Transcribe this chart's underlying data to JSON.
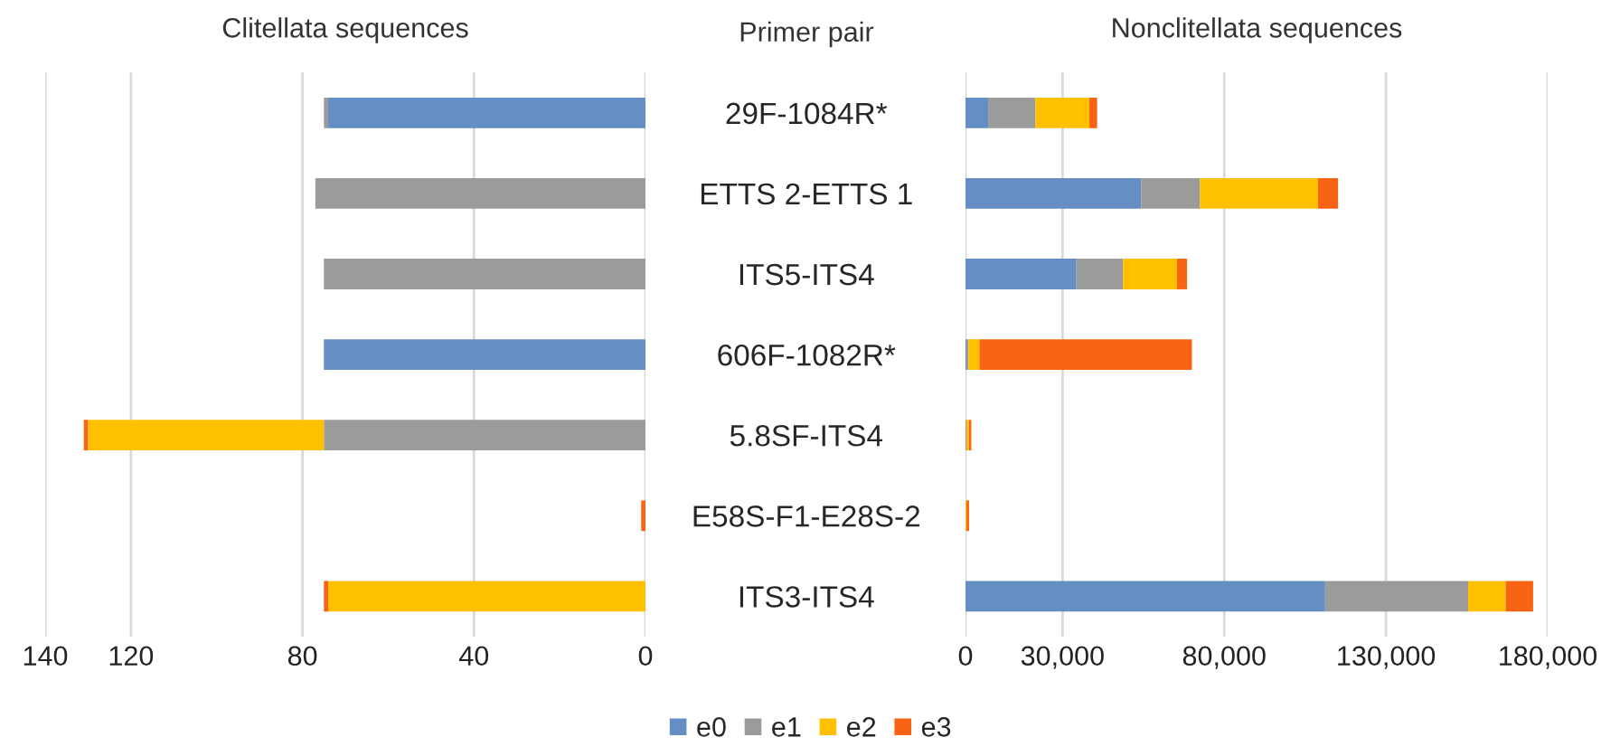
{
  "chart_data": [
    {
      "type": "bar",
      "orientation": "horizontal",
      "stacked": true,
      "title": "Clitellata sequences",
      "ylabel": "Primer pair",
      "categories": [
        "29F-1084R*",
        "ETTS 2-ETTS 1",
        "ITS5-ITS4",
        "606F-1082R*",
        "5.8SF-ITS4",
        "E58S-F1-E28S-2",
        "ITS3-ITS4"
      ],
      "series": [
        {
          "name": "e0",
          "color": "#658ec4",
          "values": [
            74,
            0,
            0,
            75,
            0,
            0,
            0
          ]
        },
        {
          "name": "e1",
          "color": "#9b9b9b",
          "values": [
            1,
            77,
            75,
            0,
            75,
            0,
            0
          ]
        },
        {
          "name": "e2",
          "color": "#ffc000",
          "values": [
            0,
            0,
            0,
            0,
            55,
            0,
            74
          ]
        },
        {
          "name": "e3",
          "color": "#f96314",
          "values": [
            0,
            0,
            0,
            0,
            1,
            1,
            1
          ]
        }
      ],
      "xlim": [
        140,
        0
      ],
      "xticks": [
        140,
        120,
        80,
        40,
        0
      ],
      "grid": "x",
      "legend": "bottom"
    },
    {
      "type": "bar",
      "orientation": "horizontal",
      "stacked": true,
      "title": "Nonclitellata sequences",
      "categories": [
        "29F-1084R*",
        "ETTS 2-ETTS 1",
        "ITS5-ITS4",
        "606F-1082R*",
        "5.8SF-ITS4",
        "E58S-F1-E28S-2",
        "ITS3-ITS4"
      ],
      "series": [
        {
          "name": "e0",
          "color": "#658ec4",
          "values": [
            7000,
            54300,
            34300,
            300,
            0,
            0,
            111200
          ]
        },
        {
          "name": "e1",
          "color": "#9b9b9b",
          "values": [
            14600,
            18200,
            14400,
            600,
            300,
            0,
            44200
          ]
        },
        {
          "name": "e2",
          "color": "#ffc000",
          "values": [
            16700,
            36500,
            16700,
            3400,
            800,
            300,
            11600
          ]
        },
        {
          "name": "e3",
          "color": "#f96314",
          "values": [
            2400,
            6200,
            3100,
            65700,
            700,
            800,
            8500
          ]
        }
      ],
      "xlim": [
        0,
        180000
      ],
      "xticks": [
        0,
        {
          "value": 30000,
          "label": "30,000"
        },
        {
          "value": 80000,
          "label": "80,000"
        },
        {
          "value": 130000,
          "label": "130,000"
        },
        {
          "value": 180000,
          "label": "180,000"
        }
      ],
      "grid": "x",
      "legend": "bottom",
      "tick_labels": "x"
    }
  ]
}
